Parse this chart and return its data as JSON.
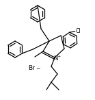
{
  "bg_color": "#ffffff",
  "line_color": "#000000",
  "lw": 0.9,
  "figsize": [
    1.39,
    1.46
  ],
  "dpi": 100,
  "xlim": [
    0,
    139
  ],
  "ylim": [
    0,
    146
  ]
}
